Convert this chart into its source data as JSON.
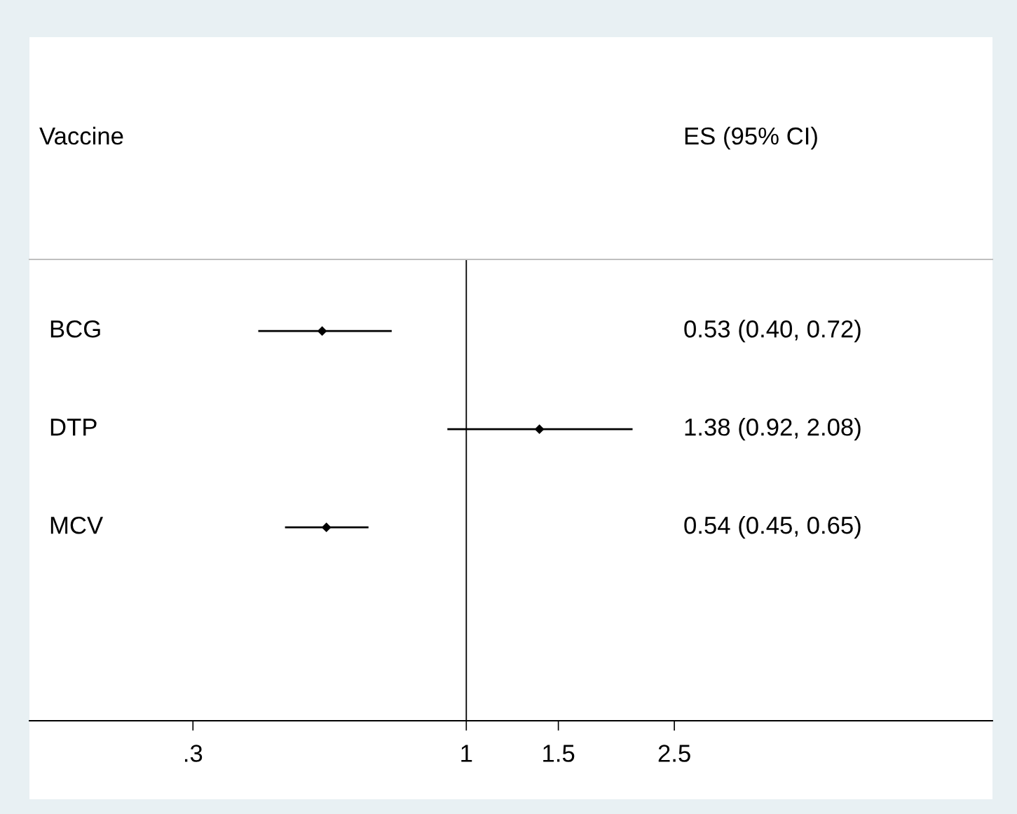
{
  "chart_data": {
    "type": "scatter",
    "orientation": "horizontal",
    "categories": [
      "BCG",
      "DTP",
      "MCV"
    ],
    "values": [
      0.53,
      1.38,
      0.54
    ],
    "errors": [
      [
        0.4,
        0.72
      ],
      [
        0.92,
        2.08
      ],
      [
        0.45,
        0.65
      ]
    ],
    "color": "#000000",
    "marker": "diamond",
    "log": "x",
    "xlim": [
      0.146,
      10.15
    ],
    "xticks": [
      {
        "value": 0.3,
        "label": ".3"
      },
      1,
      1.5,
      2.5
    ],
    "ref_lines": [
      {
        "axis": "x",
        "value": 1,
        "color": "#000000"
      }
    ],
    "annotations": [
      "Vaccine",
      "ES (95% CI)",
      "0.53 (0.40, 0.72)",
      "1.38 (0.92, 2.08)",
      "0.54 (0.45, 0.65)"
    ],
    "grid": false
  }
}
